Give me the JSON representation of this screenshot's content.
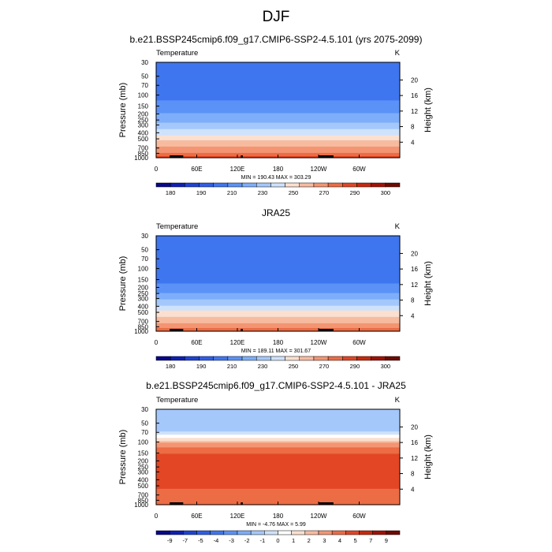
{
  "page_title": "DJF",
  "chart_data": [
    {
      "type": "heatmap",
      "title": "b.e21.BSSP245cmip6.f09_g17.CMIP6-SSP2-4.5.101 (yrs 2075-2099)",
      "left_label": "Temperature",
      "units": "K",
      "ylabel": "Pressure (mb)",
      "y2label": "Height (km)",
      "x_ticks": [
        "0",
        "60E",
        "120E",
        "180",
        "120W",
        "60W"
      ],
      "x_tick_values": [
        0,
        60,
        120,
        180,
        240,
        300
      ],
      "xlim": [
        0,
        360
      ],
      "y_ticks": [
        "30",
        "50",
        "70",
        "100",
        "150",
        "200",
        "250",
        "300",
        "400",
        "500",
        "700",
        "850",
        "1000"
      ],
      "y_tick_values": [
        30,
        50,
        70,
        100,
        150,
        200,
        250,
        300,
        400,
        500,
        700,
        850,
        1000
      ],
      "ylim": [
        30,
        1000
      ],
      "y2_ticks": [
        "4",
        "8",
        "12",
        "16",
        "20"
      ],
      "y2_tick_values": [
        4,
        8,
        12,
        16,
        20
      ],
      "stats": "MIN = 190.43  MAX = 303.29",
      "levels": [
        180,
        185,
        190,
        200,
        210,
        220,
        230,
        240,
        250,
        260,
        270,
        280,
        290,
        295,
        300
      ],
      "colorbar_labels": [
        "180",
        "190",
        "210",
        "230",
        "250",
        "270",
        "290",
        "300"
      ],
      "profile": [
        [
          30,
          205
        ],
        [
          50,
          210
        ],
        [
          70,
          205
        ],
        [
          100,
          207
        ],
        [
          150,
          214
        ],
        [
          200,
          220
        ],
        [
          250,
          226
        ],
        [
          300,
          233
        ],
        [
          400,
          246
        ],
        [
          500,
          257
        ],
        [
          700,
          272
        ],
        [
          850,
          282
        ],
        [
          1000,
          292
        ]
      ]
    },
    {
      "type": "heatmap",
      "title": "JRA25",
      "left_label": "Temperature",
      "units": "K",
      "ylabel": "Pressure (mb)",
      "y2label": "Height (km)",
      "x_ticks": [
        "0",
        "60E",
        "120E",
        "180",
        "120W",
        "60W"
      ],
      "x_tick_values": [
        0,
        60,
        120,
        180,
        240,
        300
      ],
      "xlim": [
        0,
        360
      ],
      "y_ticks": [
        "30",
        "50",
        "70",
        "100",
        "150",
        "200",
        "250",
        "300",
        "400",
        "500",
        "700",
        "850",
        "1000"
      ],
      "y_tick_values": [
        30,
        50,
        70,
        100,
        150,
        200,
        250,
        300,
        400,
        500,
        700,
        850,
        1000
      ],
      "ylim": [
        30,
        1000
      ],
      "y2_ticks": [
        "4",
        "8",
        "12",
        "16",
        "20"
      ],
      "y2_tick_values": [
        4,
        8,
        12,
        16,
        20
      ],
      "stats": "MIN = 189.11  MAX = 301.67",
      "levels": [
        180,
        185,
        190,
        200,
        210,
        220,
        230,
        240,
        250,
        260,
        270,
        280,
        290,
        295,
        300
      ],
      "colorbar_labels": [
        "180",
        "190",
        "210",
        "230",
        "250",
        "270",
        "290",
        "300"
      ],
      "profile": [
        [
          30,
          207
        ],
        [
          50,
          208
        ],
        [
          70,
          203
        ],
        [
          100,
          201
        ],
        [
          150,
          206
        ],
        [
          200,
          214
        ],
        [
          250,
          221
        ],
        [
          300,
          229
        ],
        [
          400,
          242
        ],
        [
          500,
          253
        ],
        [
          700,
          268
        ],
        [
          850,
          278
        ],
        [
          1000,
          287
        ]
      ]
    },
    {
      "type": "heatmap",
      "title": "b.e21.BSSP245cmip6.f09_g17.CMIP6-SSP2-4.5.101 - JRA25",
      "left_label": "Temperature",
      "units": "K",
      "ylabel": "Pressure (mb)",
      "y2label": "Height (km)",
      "x_ticks": [
        "0",
        "60E",
        "120E",
        "180",
        "120W",
        "60W"
      ],
      "x_tick_values": [
        0,
        60,
        120,
        180,
        240,
        300
      ],
      "xlim": [
        0,
        360
      ],
      "y_ticks": [
        "30",
        "50",
        "70",
        "100",
        "150",
        "200",
        "250",
        "300",
        "400",
        "500",
        "700",
        "850",
        "1000"
      ],
      "y_tick_values": [
        30,
        50,
        70,
        100,
        150,
        200,
        250,
        300,
        400,
        500,
        700,
        850,
        1000
      ],
      "ylim": [
        30,
        1000
      ],
      "y2_ticks": [
        "4",
        "8",
        "12",
        "16",
        "20"
      ],
      "y2_tick_values": [
        4,
        8,
        12,
        16,
        20
      ],
      "stats": "MIN = -4.76  MAX =  5.99",
      "levels": [
        -9,
        -8,
        -7,
        -6,
        -5,
        -4,
        -3,
        -2,
        -1,
        0,
        1,
        2,
        3,
        4,
        5,
        6,
        7,
        8,
        9
      ],
      "colorbar_labels": [
        "-9",
        "-7",
        "-5",
        "-4",
        "-3",
        "-2",
        "-1",
        "0",
        "1",
        "2",
        "3",
        "4",
        "5",
        "7",
        "9"
      ],
      "profile": [
        [
          30,
          -2
        ],
        [
          50,
          -2.5
        ],
        [
          70,
          -2
        ],
        [
          90,
          0.3
        ],
        [
          100,
          2
        ],
        [
          150,
          4
        ],
        [
          200,
          4.2
        ],
        [
          250,
          4.6
        ],
        [
          300,
          4.8
        ],
        [
          400,
          4.6
        ],
        [
          500,
          4.2
        ],
        [
          700,
          3.6
        ],
        [
          850,
          3.4
        ],
        [
          1000,
          3.8
        ]
      ]
    }
  ]
}
